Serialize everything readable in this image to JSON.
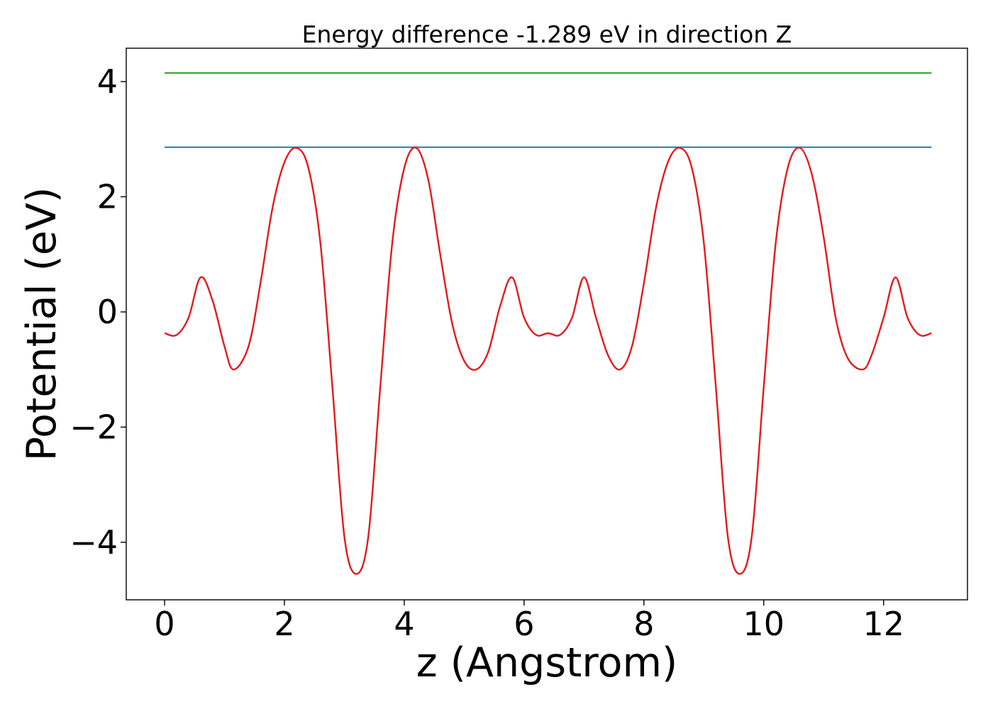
{
  "chart_data": {
    "type": "line",
    "title": "Energy difference -1.289 eV in direction Z",
    "xlabel": "z (Angstrom)",
    "ylabel": "Potential (eV)",
    "xlim": [
      -0.64,
      13.4
    ],
    "ylim": [
      -5.0,
      4.58
    ],
    "xticks": [
      0,
      2,
      4,
      6,
      8,
      10,
      12
    ],
    "yticks": [
      -4,
      -2,
      0,
      2,
      4
    ],
    "xtick_labels": [
      "0",
      "2",
      "4",
      "6",
      "8",
      "10",
      "12"
    ],
    "ytick_labels": [
      "−4",
      "−2",
      "0",
      "2",
      "4"
    ],
    "grid": false,
    "series": [
      {
        "color": "#2ca02c",
        "x": [
          0.0,
          12.8
        ],
        "y": [
          4.15,
          4.15
        ]
      },
      {
        "color": "#1f77b4",
        "x": [
          0.0,
          12.8
        ],
        "y": [
          2.86,
          2.86
        ]
      },
      {
        "color": "#e31a1c",
        "x": [
          0.0,
          0.2,
          0.4,
          0.6,
          0.8,
          1.0,
          1.15,
          1.4,
          1.6,
          1.8,
          2.0,
          2.2,
          2.4,
          2.6,
          2.8,
          3.0,
          3.2,
          3.4,
          3.6,
          3.8,
          4.0,
          4.2,
          4.4,
          4.6,
          4.8,
          5.0,
          5.2,
          5.4,
          5.6,
          5.8,
          6.0,
          6.2,
          6.4,
          6.6,
          6.8,
          7.0,
          7.2,
          7.4,
          7.6,
          7.8,
          8.0,
          8.2,
          8.4,
          8.6,
          8.8,
          9.0,
          9.2,
          9.4,
          9.6,
          9.8,
          10.0,
          10.2,
          10.4,
          10.6,
          10.8,
          11.0,
          11.2,
          11.4,
          11.65,
          11.8,
          12.0,
          12.2,
          12.4,
          12.6,
          12.8
        ],
        "y": [
          -0.37,
          -0.4,
          -0.1,
          0.6,
          0.2,
          -0.6,
          -1.0,
          -0.6,
          0.5,
          1.8,
          2.6,
          2.85,
          2.5,
          1.2,
          -1.3,
          -3.9,
          -4.55,
          -3.9,
          -1.3,
          1.2,
          2.5,
          2.85,
          2.3,
          1.0,
          -0.2,
          -0.85,
          -1.0,
          -0.7,
          0.1,
          0.6,
          -0.1,
          -0.4,
          -0.37,
          -0.4,
          -0.1,
          0.6,
          -0.1,
          -0.75,
          -1.0,
          -0.6,
          0.5,
          1.8,
          2.6,
          2.85,
          2.5,
          1.2,
          -1.3,
          -3.9,
          -4.55,
          -3.9,
          -1.3,
          1.2,
          2.5,
          2.85,
          2.4,
          1.3,
          -0.1,
          -0.8,
          -1.0,
          -0.75,
          -0.1,
          0.6,
          -0.1,
          -0.4,
          -0.37
        ]
      }
    ]
  }
}
